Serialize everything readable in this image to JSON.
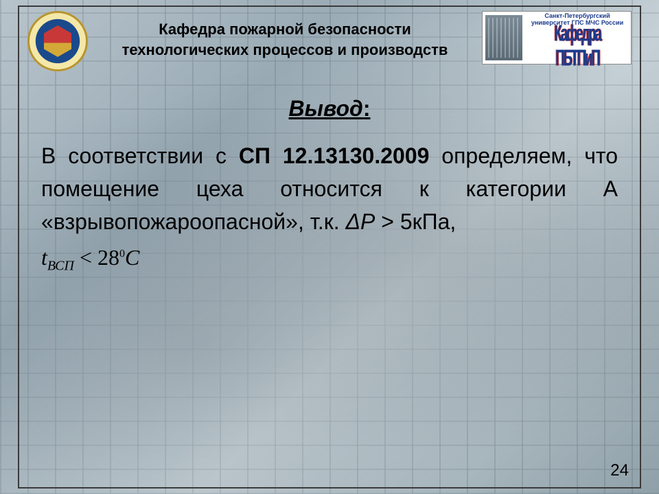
{
  "header": {
    "title_line1": "Кафедра пожарной безопасности",
    "title_line2": "технологических процессов и производств",
    "right_logo_small": "Санкт-Петербургский университет ГПС МЧС России",
    "right_logo_big": "Кафедра ПБТПиП"
  },
  "content": {
    "conclusion_label": "Вывод",
    "colon": ":",
    "text_prefix": "В соответствии с ",
    "standard_code": "СП 12.13130.2009",
    "text_middle": " определяем, что помещение цеха относится к категории А «взрывопожароопасной», т.к. ",
    "delta_p": "ΔР",
    "gt": " > ",
    "pressure_val": "5кПа,",
    "formula_var": "t",
    "formula_sub": "ВСП",
    "formula_op": " ˂ ",
    "formula_val": "28",
    "formula_deg": "0",
    "formula_unit": "C"
  },
  "page_number": "24",
  "styling": {
    "slide_width": 960,
    "slide_height": 720,
    "border_color": "#3a3a3a",
    "text_color": "#000000",
    "title_fontsize": 22,
    "conclusion_fontsize": 32,
    "body_fontsize": 32,
    "page_number_fontsize": 24,
    "emblem_colors": {
      "outer": "#1a4a8c",
      "inner": "#f4e8a8",
      "shield": "#c93838",
      "gold": "#b89530"
    },
    "logo_text_color": "#1a3a8c",
    "background_gradient": [
      "#b8c4cc",
      "#9aabb5",
      "#c5d0d6",
      "#8fa0a8"
    ]
  }
}
